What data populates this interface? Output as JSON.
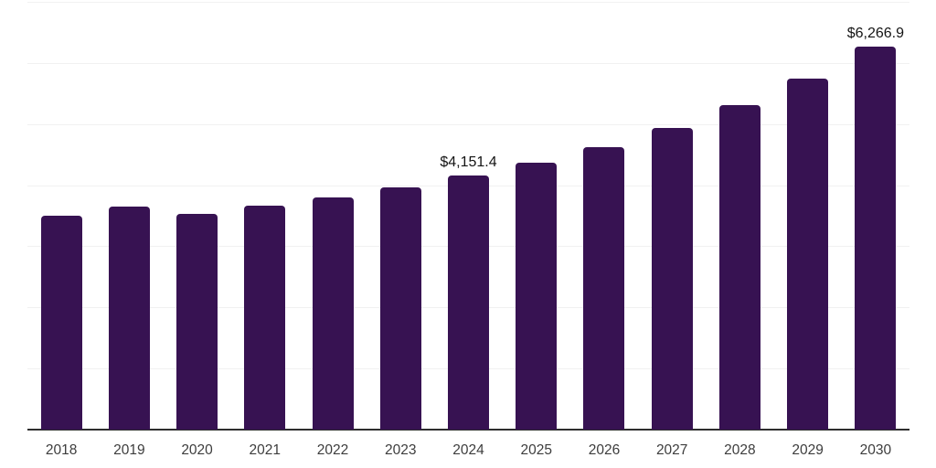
{
  "chart_data": {
    "type": "bar",
    "categories": [
      "2018",
      "2019",
      "2020",
      "2021",
      "2022",
      "2023",
      "2024",
      "2025",
      "2026",
      "2027",
      "2028",
      "2029",
      "2030"
    ],
    "values": [
      3505,
      3645,
      3530,
      3665,
      3805,
      3965,
      4151.4,
      4365,
      4625,
      4935,
      5305,
      5750,
      6266.9
    ],
    "ylim": [
      0,
      7000
    ],
    "gridline_step": 1000,
    "grid": true,
    "legend_position": "none",
    "data_labels": [
      {
        "category": "2024",
        "text": "$4,151.4"
      },
      {
        "category": "2030",
        "text": "$6,266.9"
      }
    ],
    "colors": {
      "bar": "#371252",
      "grid": "#f1f1f1",
      "axis": "#2e2e2e",
      "tick_label": "#3d3d3d",
      "data_label": "#141414",
      "background": "#ffffff"
    }
  }
}
